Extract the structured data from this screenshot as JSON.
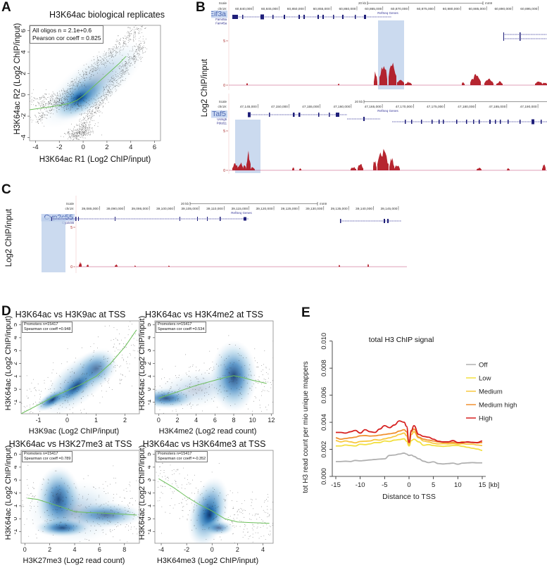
{
  "panels": {
    "A": {
      "letter": "A",
      "title": "H3K64ac biological replicates",
      "stats": [
        "All oligos n = 2.1e+0.6",
        "Pearson cor coeff = 0.825"
      ],
      "xlabel": "H3K64ac R1 (Log2 ChIP/input)",
      "ylabel": "H3K64ac R2 (Log2 ChIP/input)",
      "xticks": [
        "-4",
        "-2",
        "0",
        "2",
        "4",
        "6"
      ],
      "yticks": [
        "-4",
        "-2",
        "0",
        "2",
        "4",
        "6"
      ]
    },
    "B": {
      "letter": "B",
      "ylabel": "Log2 ChIP/input",
      "tracks": [
        {
          "gene": "Eif3a",
          "scale_label": "Scale",
          "chrom_label": "chr19:",
          "scale_bar": "20 kb",
          "assembly": "mm9",
          "coords": [
            "60,840,000",
            "60,845,000",
            "60,850,000",
            "60,855,000",
            "60,860,000",
            "60,865,000",
            "60,870,000",
            "60,875,000",
            "60,880,000",
            "60,885,000",
            "60,890,000",
            "60,895,000"
          ],
          "refseq_label": "RefSeq Genes",
          "other_genes": [
            "Fam45a",
            "Fam45a"
          ],
          "y_max": "5",
          "y_min": "0"
        },
        {
          "gene": "Taf5",
          "scale_label": "Scale",
          "chrom_label": "chr19:",
          "scale_bar": "20 kb",
          "assembly": "mm9",
          "coords": [
            "47,145,000",
            "47,150,000",
            "47,155,000",
            "47,160,000",
            "47,165,000",
            "47,170,000",
            "47,175,000",
            "47,180,000",
            "47,185,000",
            "47,190,000"
          ],
          "refseq_label": "RefSeq Genes",
          "other_genes": [
            "Usmg5",
            "Pdcd11"
          ],
          "y_max": "5",
          "y_min": "0"
        }
      ]
    },
    "C": {
      "letter": "C",
      "ylabel": "Log2 ChIP/input",
      "track": {
        "gene": "Cyp2c55",
        "scale_label": "Scale",
        "chrom_label": "chr19:",
        "scale_bar": "20 kb",
        "assembly": "mm9",
        "coords": [
          "39,085,000",
          "39,090,000",
          "39,095,000",
          "39,100,000",
          "39,105,000",
          "39,110,000",
          "39,115,000",
          "39,120,000",
          "39,125,000",
          "39,130,000",
          "39,135,000",
          "39,140,000",
          "39,145,000"
        ],
        "refseq_label": "RefSeq Genes",
        "other_genes": [
          "Cyp2c55"
        ],
        "y_max": "5",
        "y_min": "0"
      }
    },
    "D": {
      "letter": "D",
      "plots": [
        {
          "title": "H3K64ac vs H3K9ac at TSS",
          "stats": [
            "Promoters n=15417",
            "Spearman cor coeff =0.948"
          ],
          "xlabel": "H3K9ac (Log2 ChIP/input)",
          "ylabel": "H3K64ac (Log2 ChIP/input)",
          "xticks": [
            "-1",
            "0",
            "1",
            "2"
          ],
          "yticks": [
            "-1",
            "0",
            "1",
            "2",
            "3",
            "4",
            "5"
          ]
        },
        {
          "title": "H3K64ac vs H3K4me2 at TSS",
          "stats": [
            "Promoters n=15417",
            "Spearman cor coeff =0.534"
          ],
          "xlabel": "H3K4me2 (Log2 read count)",
          "ylabel": "H3K64ac (Log2 ChIP/input)",
          "xticks": [
            "0",
            "2",
            "4",
            "6",
            "8",
            "10",
            "12"
          ],
          "yticks": [
            "-1",
            "0",
            "1",
            "2",
            "3",
            "4",
            "5"
          ]
        },
        {
          "title": "H3K64ac vs H3K27me3 at TSS",
          "stats": [
            "Promoters n=15417",
            "Spearman cor coeff =0.789"
          ],
          "xlabel": "H3K27me3 (Log2 read count)",
          "ylabel": "H3K64ac (Log2 ChIP/input)",
          "xticks": [
            "0",
            "2",
            "4",
            "6",
            "8"
          ],
          "yticks": [
            "-1",
            "0",
            "1",
            "2",
            "3",
            "4",
            "5"
          ]
        },
        {
          "title": "H3K64ac vs H3K64me3 at TSS",
          "stats": [
            "Promoters n=15417",
            "Spearman cor coeff =-0.352"
          ],
          "xlabel": "H3K64me3 (Log2 ChIP/input)",
          "ylabel": "H3K64ac (Log2 ChIP/input)",
          "xticks": [
            "-4",
            "-2",
            "0",
            "2",
            "4"
          ],
          "yticks": [
            "-1",
            "0",
            "1",
            "2",
            "3",
            "4",
            "5"
          ]
        }
      ]
    },
    "E": {
      "letter": "E"
    }
  },
  "chart_data": [
    {
      "panel": "A",
      "type": "scatter",
      "title": "H3K64ac biological replicates",
      "xlabel": "H3K64ac R1 (Log2 ChIP/input)",
      "ylabel": "H3K64ac R2 (Log2 ChIP/input)",
      "xlim": [
        -4.5,
        6.5
      ],
      "ylim": [
        -4.3,
        6.5
      ],
      "xticks": [
        -4,
        -2,
        0,
        2,
        4,
        6
      ],
      "yticks": [
        -4,
        -2,
        0,
        2,
        4,
        6
      ],
      "annotation": [
        "All oligos n = 2.1e+0.6",
        "Pearson cor coeff = 0.825"
      ],
      "density_center": [
        -0.3,
        -0.3
      ],
      "fit_line": {
        "x": [
          -4.5,
          -2,
          -1,
          -0.5,
          0,
          0.5,
          1,
          2,
          3,
          3.6
        ],
        "y": [
          -1.4,
          -1.0,
          -0.75,
          -0.5,
          -0.1,
          0.4,
          0.9,
          1.9,
          2.9,
          3.6
        ]
      }
    },
    {
      "panel": "D1",
      "type": "scatter",
      "title": "H3K64ac vs H3K9ac at TSS",
      "xlabel": "H3K9ac (Log2 ChIP/input)",
      "ylabel": "H3K64ac (Log2 ChIP/input)",
      "xlim": [
        -1.6,
        2.5
      ],
      "ylim": [
        -1.9,
        5.3
      ],
      "xticks": [
        -1,
        0,
        1,
        2
      ],
      "yticks": [
        -1,
        0,
        1,
        2,
        3,
        4,
        5
      ],
      "annotation": [
        "Promoters n=15417",
        "Spearman cor coeff =0.948"
      ],
      "fit_line": {
        "x": [
          -1.6,
          -1,
          -0.5,
          0,
          0.5,
          1,
          1.5,
          2,
          2.4
        ],
        "y": [
          -1.9,
          -1.2,
          -0.6,
          -0.1,
          0.4,
          1.0,
          2.0,
          3.3,
          4.6
        ]
      }
    },
    {
      "panel": "D2",
      "type": "scatter",
      "title": "H3K64ac vs H3K4me2 at TSS",
      "xlabel": "H3K4me2 (Log2 read count)",
      "ylabel": "H3K64ac (Log2 ChIP/input)",
      "xlim": [
        -0.4,
        12.2
      ],
      "ylim": [
        -1.9,
        5.3
      ],
      "xticks": [
        0,
        2,
        4,
        6,
        8,
        10,
        12
      ],
      "yticks": [
        -1,
        0,
        1,
        2,
        3,
        4,
        5
      ],
      "annotation": [
        "Promoters n=15417",
        "Spearman cor coeff =0.534"
      ],
      "fit_line": {
        "x": [
          0,
          2,
          4,
          6,
          7,
          8,
          9,
          10,
          11.5
        ],
        "y": [
          -0.7,
          -0.2,
          0.3,
          0.7,
          0.9,
          1.05,
          0.9,
          0.7,
          0.45
        ]
      }
    },
    {
      "panel": "D3",
      "type": "scatter",
      "title": "H3K64ac vs H3K27me3 at TSS",
      "xlabel": "H3K27me3 (Log2 read count)",
      "ylabel": "H3K64ac (Log2 ChIP/input)",
      "xlim": [
        -0.3,
        9.2
      ],
      "ylim": [
        -1.9,
        5.3
      ],
      "xticks": [
        0,
        2,
        4,
        6,
        8
      ],
      "yticks": [
        -1,
        0,
        1,
        2,
        3,
        4,
        5
      ],
      "annotation": [
        "Promoters n=15417",
        "Spearman cor coeff =0.789"
      ],
      "fit_line": {
        "x": [
          0.2,
          1,
          2,
          3,
          4,
          5,
          6,
          7,
          8,
          9
        ],
        "y": [
          1.6,
          1.5,
          1.2,
          0.9,
          0.55,
          0.48,
          0.45,
          0.4,
          0.35,
          0.28
        ]
      }
    },
    {
      "panel": "D4",
      "type": "scatter",
      "title": "H3K64ac vs H3K64me3 at TSS",
      "xlabel": "H3K64me3 (Log2 ChIP/input)",
      "ylabel": "H3K64ac (Log2 ChIP/input)",
      "xlim": [
        -4.5,
        4.8
      ],
      "ylim": [
        -1.9,
        5.3
      ],
      "xticks": [
        -4,
        -2,
        0,
        2,
        4
      ],
      "yticks": [
        -1,
        0,
        1,
        2,
        3,
        4,
        5
      ],
      "annotation": [
        "Promoters n=15417",
        "Spearman cor coeff =-0.352"
      ],
      "fit_line": {
        "x": [
          -4.2,
          -3,
          -2,
          -1,
          0,
          1,
          2,
          3,
          4.5
        ],
        "y": [
          3.1,
          2.4,
          1.7,
          1.1,
          0.6,
          0.0,
          -0.25,
          -0.3,
          -0.35
        ]
      }
    },
    {
      "panel": "E",
      "type": "line",
      "title": "total  H3 ChIP signal",
      "xlabel": "Distance to TSS",
      "ylabel": "tot H3 read count per mio unique mappers",
      "x_unit": "[kb]",
      "xlim": [
        -16,
        16
      ],
      "ylim": [
        0,
        0.01
      ],
      "xticks": [
        -15,
        -10,
        -5,
        0,
        5,
        10,
        15
      ],
      "yticks": [
        "0.000",
        "0.002",
        "0.004",
        "0.006",
        "0.008",
        "0.010"
      ],
      "legend_position": "top-right",
      "x": [
        -15,
        -14,
        -13,
        -12,
        -11,
        -10,
        -9,
        -8,
        -7,
        -6,
        -5,
        -4,
        -3,
        -2,
        -1,
        -0.5,
        0,
        0.5,
        1,
        2,
        3,
        4,
        5,
        6,
        7,
        8,
        9,
        10,
        11,
        12,
        13,
        14,
        15
      ],
      "series": [
        {
          "name": "Off",
          "color": "#b0b0b0",
          "values": [
            0.0011,
            0.0011,
            0.00112,
            0.0011,
            0.00118,
            0.00115,
            0.00118,
            0.00122,
            0.00125,
            0.00128,
            0.0013,
            0.00155,
            0.00158,
            0.00165,
            0.00172,
            0.00165,
            0.00155,
            0.00158,
            0.00148,
            0.0013,
            0.00112,
            0.00102,
            0.00108,
            0.00095,
            0.00092,
            0.00095,
            0.00098,
            0.0009,
            0.00098,
            0.001,
            0.00102,
            0.001,
            0.001
          ]
        },
        {
          "name": "Low",
          "color": "#f2e040",
          "values": [
            0.00225,
            0.00225,
            0.00232,
            0.00228,
            0.00225,
            0.00238,
            0.00235,
            0.0024,
            0.0025,
            0.0025,
            0.00262,
            0.00258,
            0.00268,
            0.00272,
            0.00278,
            0.0026,
            0.00225,
            0.00265,
            0.00275,
            0.00255,
            0.0023,
            0.00235,
            0.00228,
            0.00225,
            0.00222,
            0.00225,
            0.00228,
            0.00228,
            0.00222,
            0.00215,
            0.00208,
            0.00202,
            0.00192
          ]
        },
        {
          "name": "Medium",
          "color": "#f8c840",
          "values": [
            0.00265,
            0.00255,
            0.00262,
            0.00255,
            0.00248,
            0.00258,
            0.0026,
            0.00262,
            0.00272,
            0.00268,
            0.00278,
            0.00285,
            0.00295,
            0.0031,
            0.0032,
            0.003,
            0.00235,
            0.0031,
            0.0033,
            0.00285,
            0.00262,
            0.00255,
            0.00245,
            0.0024,
            0.00242,
            0.0024,
            0.00242,
            0.00238,
            0.00242,
            0.00238,
            0.00238,
            0.00232,
            0.00228
          ]
        },
        {
          "name": "Medium high",
          "color": "#f09030",
          "values": [
            0.00285,
            0.00275,
            0.0028,
            0.00285,
            0.0029,
            0.003,
            0.00302,
            0.00298,
            0.003,
            0.00305,
            0.0031,
            0.00315,
            0.0032,
            0.00335,
            0.00345,
            0.0033,
            0.00255,
            0.0033,
            0.0035,
            0.0029,
            0.00275,
            0.00268,
            0.00262,
            0.00255,
            0.00252,
            0.0025,
            0.00252,
            0.00248,
            0.00255,
            0.00252,
            0.0025,
            0.00248,
            0.0025
          ]
        },
        {
          "name": "High",
          "color": "#d62020",
          "values": [
            0.00325,
            0.00325,
            0.0032,
            0.0033,
            0.0034,
            0.0032,
            0.00345,
            0.0033,
            0.00325,
            0.0035,
            0.00375,
            0.0036,
            0.0038,
            0.0041,
            0.004,
            0.0037,
            0.0025,
            0.0034,
            0.00375,
            0.0031,
            0.00295,
            0.0029,
            0.00275,
            0.0026,
            0.00255,
            0.00255,
            0.00265,
            0.0025,
            0.0025,
            0.00255,
            0.00252,
            0.0025,
            0.00262
          ]
        }
      ]
    }
  ]
}
